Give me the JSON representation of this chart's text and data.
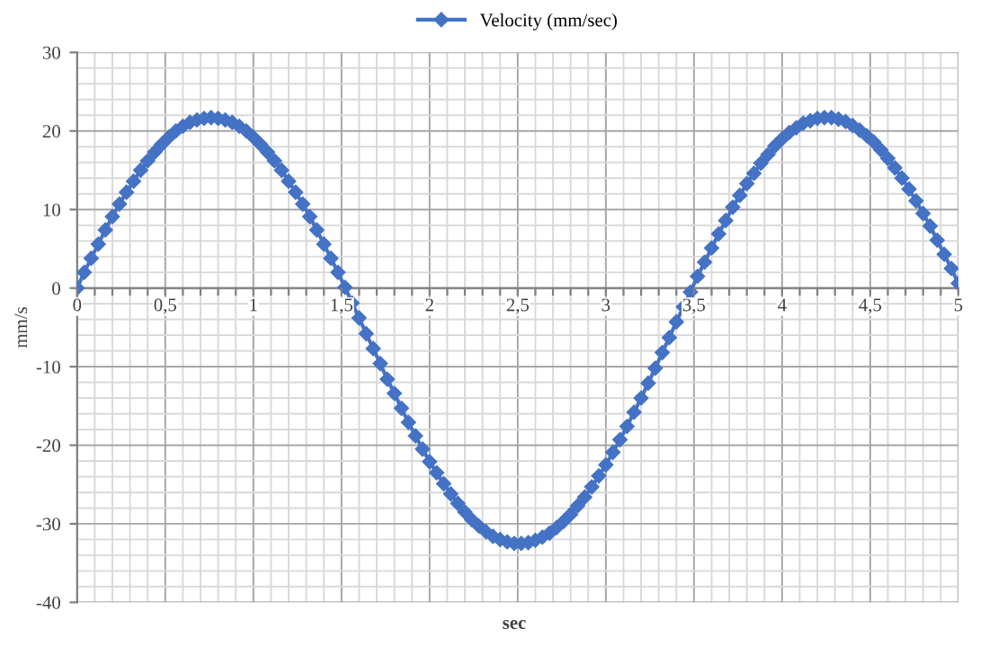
{
  "chart_data": {
    "type": "line",
    "xlabel": "sec",
    "ylabel": "mm/s",
    "legend": "top",
    "grid": true,
    "marker": "diamond",
    "line_style": "solid",
    "xlim": [
      0,
      5
    ],
    "ylim": [
      -40,
      30
    ],
    "xticks": [
      0,
      {
        "value": 0.1,
        "label": null
      },
      {
        "value": 0.2,
        "label": null
      },
      {
        "value": 0.3,
        "label": null
      },
      {
        "value": 0.4,
        "label": null
      },
      {
        "value": 0.5,
        "label": "0,5"
      },
      {
        "value": 0.6,
        "label": null
      },
      {
        "value": 0.7,
        "label": null
      },
      {
        "value": 0.8,
        "label": null
      },
      {
        "value": 0.9,
        "label": null
      },
      1,
      {
        "value": 1.1,
        "label": null
      },
      {
        "value": 1.2,
        "label": null
      },
      {
        "value": 1.3,
        "label": null
      },
      {
        "value": 1.4,
        "label": null
      },
      {
        "value": 1.5,
        "label": "1,5"
      },
      {
        "value": 1.6,
        "label": null
      },
      {
        "value": 1.7,
        "label": null
      },
      {
        "value": 1.8,
        "label": null
      },
      {
        "value": 1.9,
        "label": null
      },
      2,
      {
        "value": 2.1,
        "label": null
      },
      {
        "value": 2.2,
        "label": null
      },
      {
        "value": 2.3,
        "label": null
      },
      {
        "value": 2.4,
        "label": null
      },
      {
        "value": 2.5,
        "label": "2,5"
      },
      {
        "value": 2.6,
        "label": null
      },
      {
        "value": 2.7,
        "label": null
      },
      {
        "value": 2.8,
        "label": null
      },
      {
        "value": 2.9,
        "label": null
      },
      3,
      {
        "value": 3.1,
        "label": null
      },
      {
        "value": 3.2,
        "label": null
      },
      {
        "value": 3.3,
        "label": null
      },
      {
        "value": 3.4,
        "label": null
      },
      {
        "value": 3.5,
        "label": "3,5"
      },
      {
        "value": 3.6,
        "label": null
      },
      {
        "value": 3.7,
        "label": null
      },
      {
        "value": 3.8,
        "label": null
      },
      {
        "value": 3.9,
        "label": null
      },
      4,
      {
        "value": 4.1,
        "label": null
      },
      {
        "value": 4.2,
        "label": null
      },
      {
        "value": 4.3,
        "label": null
      },
      {
        "value": 4.4,
        "label": null
      },
      {
        "value": 4.5,
        "label": "4,5"
      },
      {
        "value": 4.6,
        "label": null
      },
      {
        "value": 4.7,
        "label": null
      },
      {
        "value": 4.8,
        "label": null
      },
      {
        "value": 4.9,
        "label": null
      },
      5
    ],
    "yticks": [
      -40,
      {
        "value": -38,
        "label": null
      },
      {
        "value": -36,
        "label": null
      },
      {
        "value": -34,
        "label": null
      },
      {
        "value": -32,
        "label": null
      },
      -30,
      {
        "value": -28,
        "label": null
      },
      {
        "value": -26,
        "label": null
      },
      {
        "value": -24,
        "label": null
      },
      {
        "value": -22,
        "label": null
      },
      -20,
      {
        "value": -18,
        "label": null
      },
      {
        "value": -16,
        "label": null
      },
      {
        "value": -14,
        "label": null
      },
      {
        "value": -12,
        "label": null
      },
      -10,
      {
        "value": -8,
        "label": null
      },
      {
        "value": -6,
        "label": null
      },
      {
        "value": -4,
        "label": null
      },
      {
        "value": -2,
        "label": null
      },
      0,
      {
        "value": 2,
        "label": null
      },
      {
        "value": 4,
        "label": null
      },
      {
        "value": 6,
        "label": null
      },
      {
        "value": 8,
        "label": null
      },
      10,
      {
        "value": 12,
        "label": null
      },
      {
        "value": 14,
        "label": null
      },
      {
        "value": 16,
        "label": null
      },
      {
        "value": 18,
        "label": null
      },
      20,
      {
        "value": 22,
        "label": null
      },
      {
        "value": 24,
        "label": null
      },
      {
        "value": 26,
        "label": null
      },
      {
        "value": 28,
        "label": null
      },
      30
    ],
    "x": [
      0,
      0.04,
      0.08,
      0.12,
      0.16,
      0.2,
      0.24,
      0.28,
      0.32,
      0.36,
      0.4,
      0.44,
      0.48,
      0.52,
      0.56,
      0.6,
      0.64,
      0.68,
      0.72,
      0.76,
      0.8,
      0.84,
      0.88,
      0.92,
      0.96,
      1,
      1.04,
      1.08,
      1.12,
      1.16,
      1.2,
      1.24,
      1.28,
      1.32,
      1.36,
      1.4,
      1.44,
      1.48,
      1.52,
      1.56,
      1.6,
      1.64,
      1.68,
      1.72,
      1.76,
      1.8,
      1.84,
      1.88,
      1.92,
      1.96,
      2,
      2.04,
      2.08,
      2.12,
      2.16,
      2.2,
      2.24,
      2.28,
      2.32,
      2.36,
      2.4,
      2.44,
      2.48,
      2.52,
      2.56,
      2.6,
      2.64,
      2.68,
      2.72,
      2.76,
      2.8,
      2.84,
      2.88,
      2.92,
      2.96,
      3,
      3.04,
      3.08,
      3.12,
      3.16,
      3.2,
      3.24,
      3.28,
      3.32,
      3.36,
      3.4,
      3.44,
      3.48,
      3.52,
      3.56,
      3.6,
      3.64,
      3.68,
      3.72,
      3.76,
      3.8,
      3.84,
      3.88,
      3.92,
      3.96,
      4,
      4.04,
      4.08,
      4.12,
      4.16,
      4.2,
      4.24,
      4.28,
      4.32,
      4.36,
      4.4,
      4.44,
      4.48,
      4.52,
      4.56,
      4.6,
      4.64,
      4.68,
      4.72,
      4.76,
      4.8,
      4.84,
      4.88,
      4.92,
      4.96,
      5
    ],
    "series": [
      {
        "name": "Velocity (mm/sec)",
        "color": "#4472c4",
        "values": [
          0,
          2.0,
          3.8,
          5.6,
          7.4,
          9.1,
          10.7,
          12.2,
          13.6,
          15.0,
          16.2,
          17.3,
          18.3,
          19.2,
          20.0,
          20.6,
          21.1,
          21.4,
          21.6,
          21.7,
          21.6,
          21.4,
          21.1,
          20.6,
          20.0,
          19.2,
          18.3,
          17.3,
          16.2,
          15.0,
          13.6,
          12.2,
          10.7,
          9.1,
          7.4,
          5.6,
          3.8,
          2.0,
          0.1,
          -1.9,
          -3.8,
          -5.8,
          -7.7,
          -9.6,
          -11.6,
          -13.4,
          -15.3,
          -17.1,
          -18.8,
          -20.5,
          -22.1,
          -23.5,
          -24.9,
          -26.2,
          -27.4,
          -28.5,
          -29.5,
          -30.3,
          -31.0,
          -31.6,
          -32.0,
          -32.3,
          -32.5,
          -32.5,
          -32.4,
          -32.1,
          -31.7,
          -31.2,
          -30.5,
          -29.7,
          -28.8,
          -27.7,
          -26.6,
          -25.3,
          -23.9,
          -22.5,
          -20.9,
          -19.3,
          -17.6,
          -15.8,
          -14.0,
          -12.1,
          -10.2,
          -8.2,
          -6.3,
          -4.3,
          -2.4,
          -0.5,
          1.5,
          3.3,
          5.1,
          6.9,
          8.6,
          10.3,
          11.8,
          13.3,
          14.6,
          15.9,
          17.0,
          18.1,
          19.0,
          19.8,
          20.4,
          21.0,
          21.3,
          21.6,
          21.7,
          21.7,
          21.5,
          21.2,
          20.7,
          20.1,
          19.4,
          18.6,
          17.6,
          16.5,
          15.3,
          14.0,
          12.6,
          11.1,
          9.5,
          7.9,
          6.1,
          4.3,
          2.5,
          0.6
        ]
      }
    ]
  }
}
